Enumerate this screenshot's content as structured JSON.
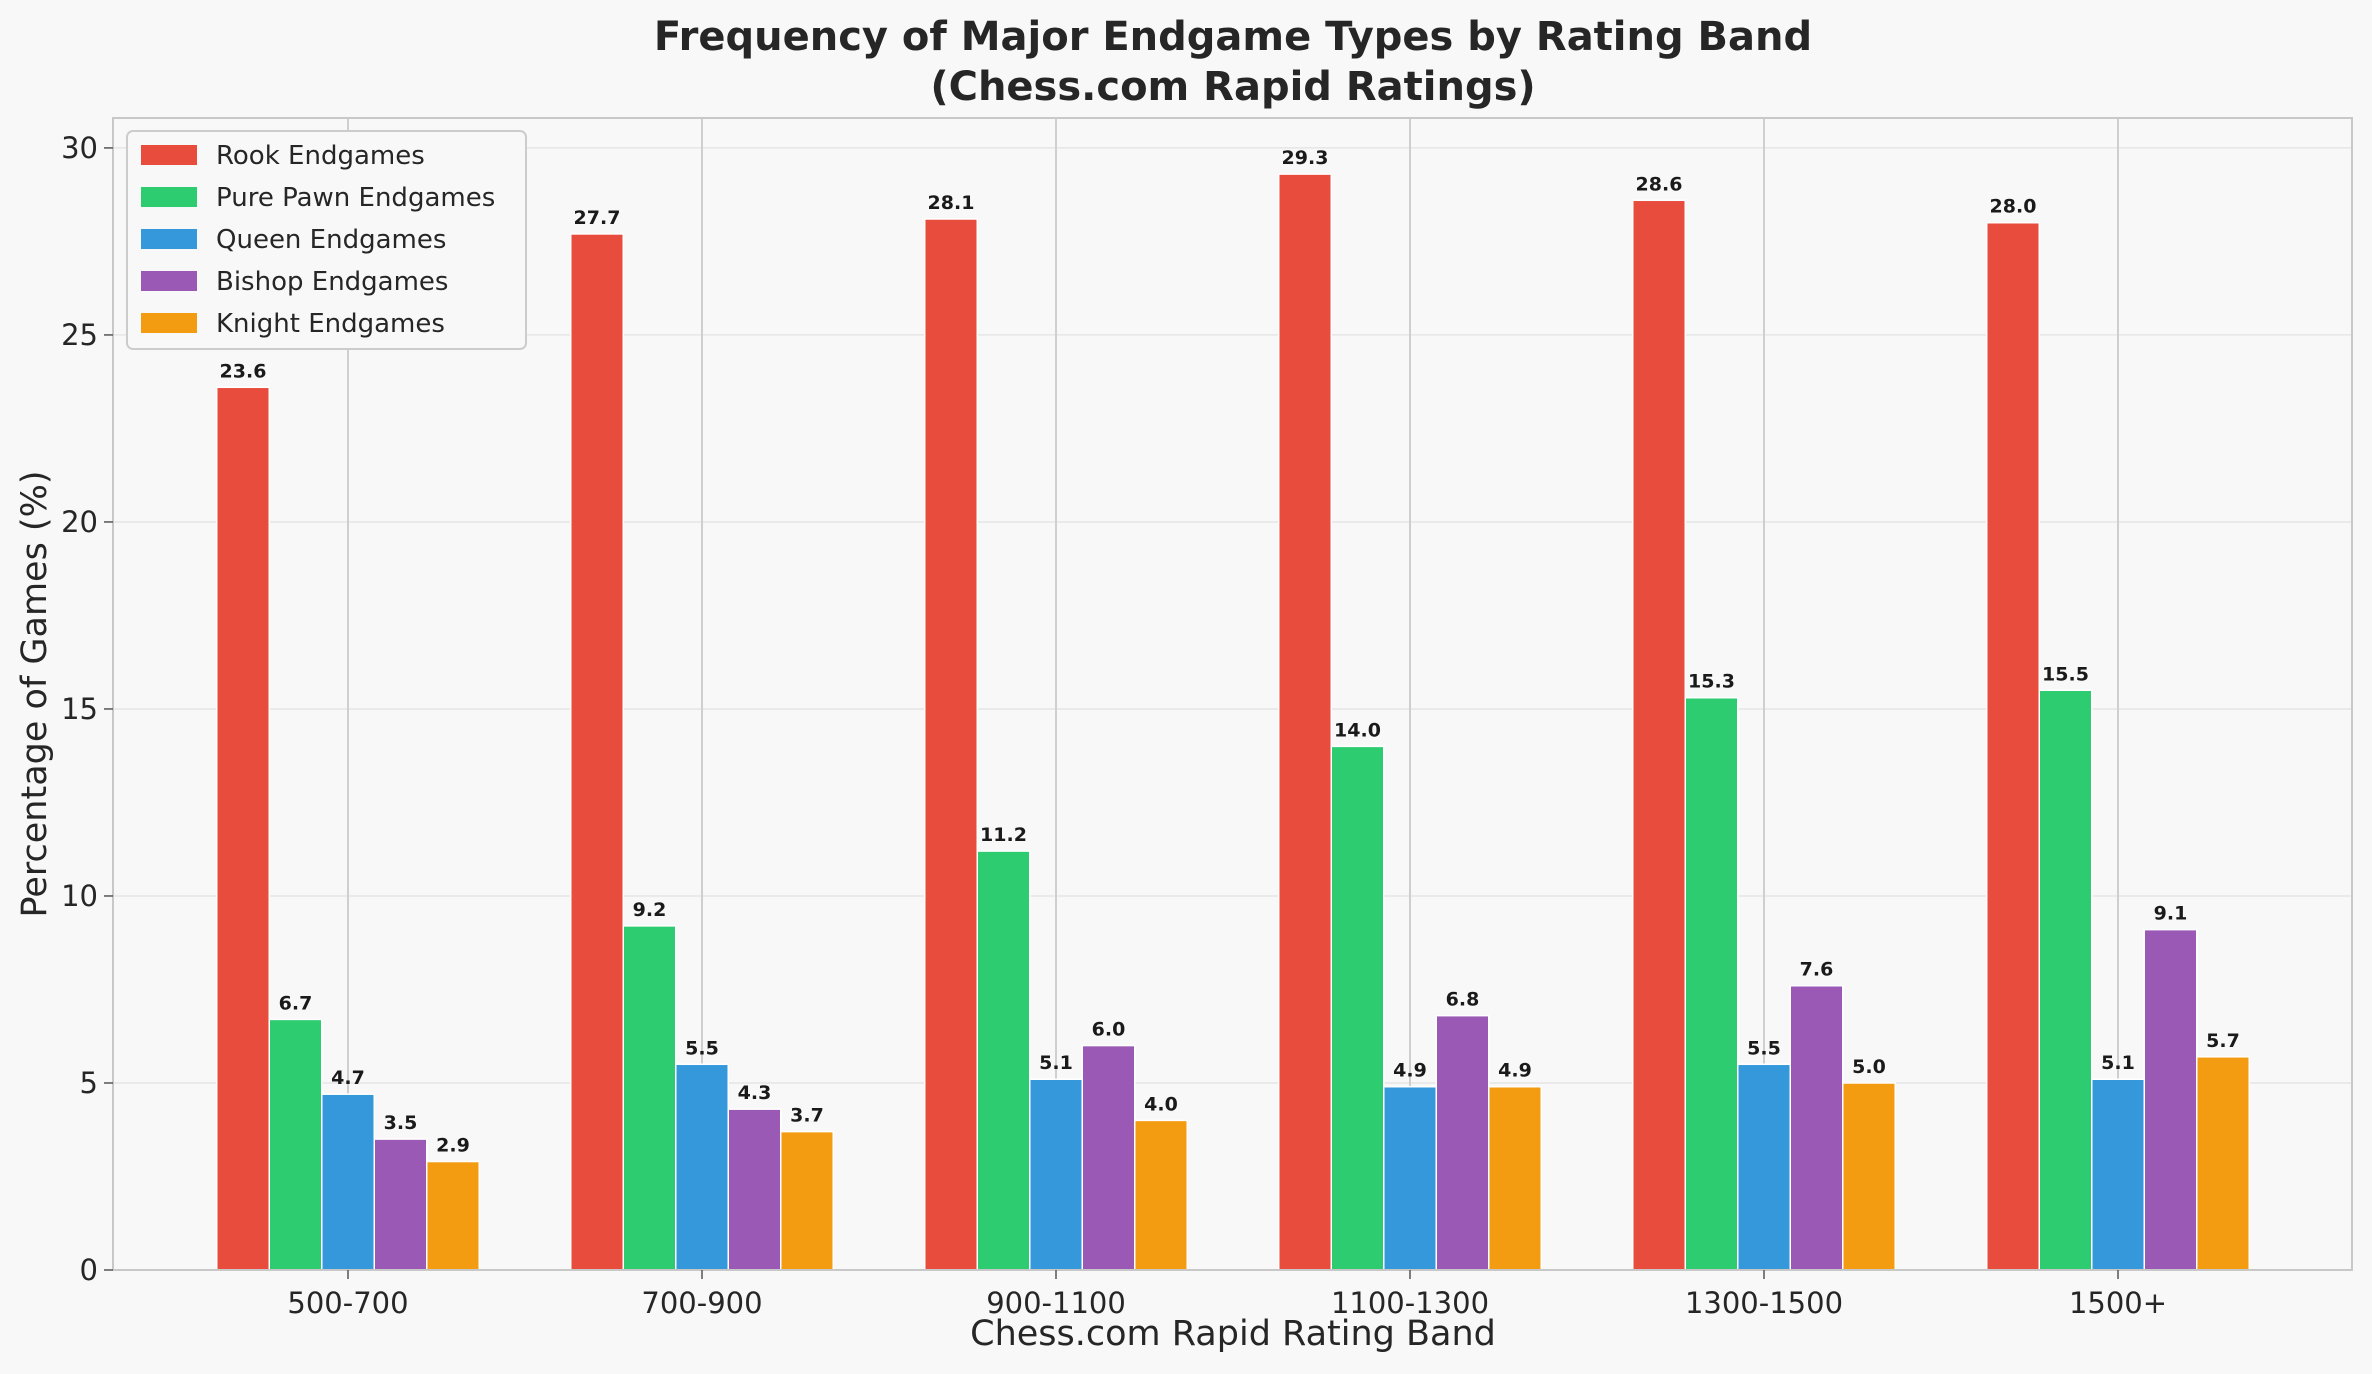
{
  "chart_data": {
    "type": "bar",
    "title": "Frequency of Major Endgame Types by Rating Band",
    "subtitle": "(Chess.com Rapid Ratings)",
    "xlabel": "Chess.com Rapid Rating Band",
    "ylabel": "Percentage of Games (%)",
    "ylim": [
      0,
      30.8
    ],
    "yticks": [
      0,
      5,
      10,
      15,
      20,
      25,
      30
    ],
    "grid": true,
    "legend_position": "top-left",
    "categories": [
      "500-700",
      "700-900",
      "900-1100",
      "1100-1300",
      "1300-1500",
      "1500+"
    ],
    "series": [
      {
        "name": "Rook Endgames",
        "color": "#e74c3c",
        "values": [
          23.6,
          27.7,
          28.1,
          29.3,
          28.6,
          28.0
        ]
      },
      {
        "name": "Pure Pawn Endgames",
        "color": "#2ecc71",
        "values": [
          6.7,
          9.2,
          11.2,
          14.0,
          15.3,
          15.5
        ]
      },
      {
        "name": "Queen Endgames",
        "color": "#3498db",
        "values": [
          4.7,
          5.5,
          5.1,
          4.9,
          5.5,
          5.1
        ]
      },
      {
        "name": "Bishop Endgames",
        "color": "#9b59b6",
        "values": [
          3.5,
          4.3,
          6.0,
          6.8,
          7.6,
          9.1
        ]
      },
      {
        "name": "Knight Endgames",
        "color": "#f39c12",
        "values": [
          2.9,
          3.7,
          4.0,
          4.9,
          5.0,
          5.7
        ]
      }
    ]
  }
}
